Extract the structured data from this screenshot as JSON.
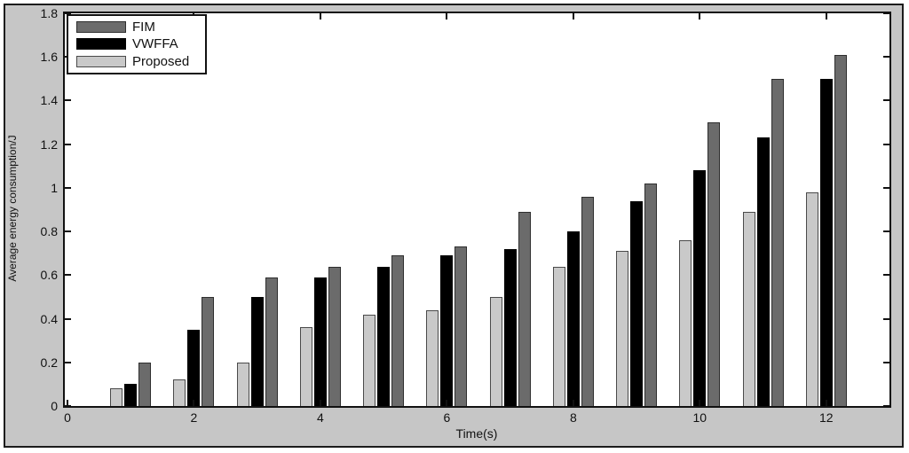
{
  "figure": {
    "background_color": "#c6c6c6",
    "plot_background": "#ffffff",
    "frame_color": "#1c1c1c"
  },
  "axes": {
    "xlabel": "Time(s)",
    "ylabel": "Average energy consumption/J"
  },
  "legend": {
    "position": "top-left",
    "entries": [
      {
        "label": "FIM",
        "color": "#6b6b6b",
        "edge": "#2e2e2e"
      },
      {
        "label": "VWFFA",
        "color": "#000000",
        "edge": "#000000"
      },
      {
        "label": "Proposed",
        "color": "#c9c9c9",
        "edge": "#4a4a4a"
      }
    ]
  },
  "chart_data": {
    "type": "bar",
    "title": "",
    "xlabel": "Time(s)",
    "ylabel": "Average energy consumption/J",
    "categories": [
      1,
      2,
      3,
      4,
      5,
      6,
      7,
      8,
      9,
      10,
      11,
      12
    ],
    "series": [
      {
        "name": "Proposed",
        "color": "#c9c9c9",
        "edge": "#4a4a4a",
        "values": [
          0.08,
          0.12,
          0.2,
          0.36,
          0.42,
          0.44,
          0.5,
          0.64,
          0.71,
          0.76,
          0.89,
          0.98
        ]
      },
      {
        "name": "VWFFA",
        "color": "#000000",
        "edge": "#000000",
        "values": [
          0.1,
          0.35,
          0.5,
          0.59,
          0.64,
          0.69,
          0.72,
          0.8,
          0.94,
          1.08,
          1.23,
          1.5
        ]
      },
      {
        "name": "FIM",
        "color": "#6b6b6b",
        "edge": "#2e2e2e",
        "values": [
          0.2,
          0.5,
          0.59,
          0.64,
          0.69,
          0.73,
          0.89,
          0.96,
          1.02,
          1.3,
          1.5,
          1.61
        ]
      }
    ],
    "bar_order_left_to_right": [
      "Proposed",
      "VWFFA",
      "FIM"
    ],
    "xticks": [
      0,
      2,
      4,
      6,
      8,
      10,
      12
    ],
    "yticks": [
      0,
      0.2,
      0.4,
      0.6,
      0.8,
      1,
      1.2,
      1.4,
      1.6,
      1.8
    ],
    "xlim": [
      0,
      13
    ],
    "ylim": [
      0,
      1.8
    ],
    "grid": false,
    "legend_position": "top-left"
  }
}
